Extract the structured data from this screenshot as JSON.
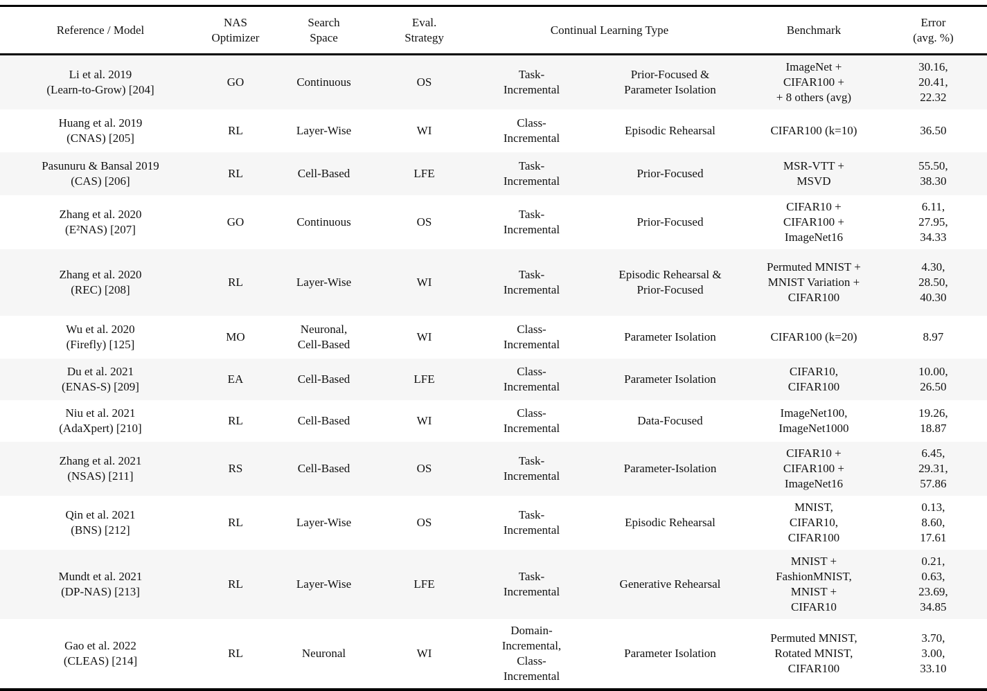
{
  "colors": {
    "stripe": "#f6f6f6",
    "rule": "#000000",
    "text": "#111111"
  },
  "table": {
    "headers": {
      "reference": "Reference / Model",
      "nas_optimizer": "NAS\nOptimizer",
      "search_space": "Search\nSpace",
      "eval_strategy": "Eval.\nStrategy",
      "cl_type": "Continual Learning Type",
      "benchmark": "Benchmark",
      "error": "Error\n(avg. %)"
    },
    "rows": [
      {
        "reference": "Li et al. 2019\n(Learn-to-Grow) [204]",
        "nas_optimizer": "GO",
        "search_space": "Continuous",
        "eval_strategy": "OS",
        "cl_type_a": "Task-\nIncremental",
        "cl_type_b": "Prior-Focused &\nParameter Isolation",
        "benchmark": "ImageNet +\nCIFAR100 +\n+ 8 others (avg)",
        "error": "30.16,\n20.41,\n22.32"
      },
      {
        "reference": "Huang et al. 2019\n(CNAS) [205]",
        "nas_optimizer": "RL",
        "search_space": "Layer-Wise",
        "eval_strategy": "WI",
        "cl_type_a": "Class-\nIncremental",
        "cl_type_b": "Episodic Rehearsal",
        "benchmark": "CIFAR100 (k=10)",
        "error": "36.50"
      },
      {
        "reference": "Pasunuru & Bansal 2019\n(CAS) [206]",
        "nas_optimizer": "RL",
        "search_space": "Cell-Based",
        "eval_strategy": "LFE",
        "cl_type_a": "Task-\nIncremental",
        "cl_type_b": "Prior-Focused",
        "benchmark": "MSR-VTT +\nMSVD",
        "error": "55.50,\n38.30"
      },
      {
        "reference": "Zhang et al. 2020\n(E²NAS) [207]",
        "nas_optimizer": "GO",
        "search_space": "Continuous",
        "eval_strategy": "OS",
        "cl_type_a": "Task-\nIncremental",
        "cl_type_b": "Prior-Focused",
        "benchmark": "CIFAR10 +\nCIFAR100 +\nImageNet16",
        "error": "6.11,\n27.95,\n34.33"
      },
      {
        "reference": "Zhang et al. 2020\n(REC) [208]",
        "nas_optimizer": "RL",
        "search_space": "Layer-Wise",
        "eval_strategy": "WI",
        "cl_type_a": "Task-\nIncremental",
        "cl_type_b": "Episodic Rehearsal &\nPrior-Focused",
        "benchmark": "Permuted MNIST +\nMNIST Variation +\nCIFAR100",
        "error": "4.30,\n28.50,\n40.30"
      },
      {
        "reference": "Wu et al. 2020\n(Firefly) [125]",
        "nas_optimizer": "MO",
        "search_space": "Neuronal,\nCell-Based",
        "eval_strategy": "WI",
        "cl_type_a": "Class-\nIncremental",
        "cl_type_b": "Parameter Isolation",
        "benchmark": "CIFAR100 (k=20)",
        "error": "8.97"
      },
      {
        "reference": "Du et al. 2021\n(ENAS-S) [209]",
        "nas_optimizer": "EA",
        "search_space": "Cell-Based",
        "eval_strategy": "LFE",
        "cl_type_a": "Class-\nIncremental",
        "cl_type_b": "Parameter Isolation",
        "benchmark": "CIFAR10,\nCIFAR100",
        "error": "10.00,\n26.50"
      },
      {
        "reference": "Niu et al. 2021\n(AdaXpert) [210]",
        "nas_optimizer": "RL",
        "search_space": "Cell-Based",
        "eval_strategy": "WI",
        "cl_type_a": "Class-\nIncremental",
        "cl_type_b": "Data-Focused",
        "benchmark": "ImageNet100,\nImageNet1000",
        "error": "19.26,\n18.87"
      },
      {
        "reference": "Zhang et al. 2021\n(NSAS) [211]",
        "nas_optimizer": "RS",
        "search_space": "Cell-Based",
        "eval_strategy": "OS",
        "cl_type_a": "Task-\nIncremental",
        "cl_type_b": "Parameter-Isolation",
        "benchmark": "CIFAR10 +\nCIFAR100 +\nImageNet16",
        "error": "6.45,\n29.31,\n57.86"
      },
      {
        "reference": "Qin et al. 2021\n(BNS) [212]",
        "nas_optimizer": "RL",
        "search_space": "Layer-Wise",
        "eval_strategy": "OS",
        "cl_type_a": "Task-\nIncremental",
        "cl_type_b": "Episodic Rehearsal",
        "benchmark": "MNIST,\nCIFAR10,\nCIFAR100",
        "error": "0.13,\n8.60,\n17.61"
      },
      {
        "reference": "Mundt et al. 2021\n(DP-NAS) [213]",
        "nas_optimizer": "RL",
        "search_space": "Layer-Wise",
        "eval_strategy": "LFE",
        "cl_type_a": "Task-\nIncremental",
        "cl_type_b": "Generative Rehearsal",
        "benchmark": "MNIST +\nFashionMNIST,\nMNIST +\nCIFAR10",
        "error": "0.21,\n0.63,\n23.69,\n34.85"
      },
      {
        "reference": "Gao et al. 2022\n(CLEAS) [214]",
        "nas_optimizer": "RL",
        "search_space": "Neuronal",
        "eval_strategy": "WI",
        "cl_type_a": "Domain-\nIncremental,\nClass-\nIncremental",
        "cl_type_b": "Parameter Isolation",
        "benchmark": "Permuted MNIST,\nRotated MNIST,\nCIFAR100",
        "error": "3.70,\n3.00,\n33.10"
      }
    ]
  }
}
